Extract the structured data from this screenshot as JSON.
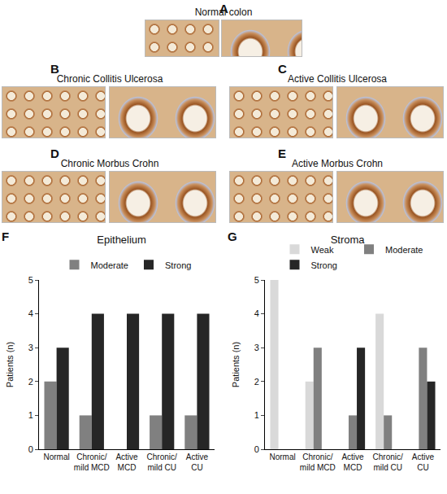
{
  "panels": [
    {
      "label": "A",
      "title": "Normal colon"
    },
    {
      "label": "B",
      "title": "Chronic Collitis Ulcerosa"
    },
    {
      "label": "C",
      "title": "Active Collitis Ulcerosa"
    },
    {
      "label": "D",
      "title": "Chronic Morbus Crohn"
    },
    {
      "label": "E",
      "title": "Active Morbus Crohn"
    }
  ],
  "chart_data": [
    {
      "type": "bar",
      "panel_label": "F",
      "title": "Epithelium",
      "categories": [
        "Normal",
        "Chronic/\nmild MCD",
        "Active\nMCD",
        "Chronic/\nmild CU",
        "Active\nCU"
      ],
      "series": [
        {
          "name": "Moderate",
          "color": "#808080",
          "values": [
            2,
            1,
            0,
            1,
            1
          ]
        },
        {
          "name": "Strong",
          "color": "#262626",
          "values": [
            3,
            4,
            4,
            4,
            4
          ]
        }
      ],
      "y_label": "Patients (n)",
      "ylim": [
        0,
        5
      ],
      "yticks": [
        0,
        1,
        2,
        3,
        4,
        5
      ],
      "grid": false,
      "legend": "top"
    },
    {
      "type": "bar",
      "panel_label": "G",
      "title": "Stroma",
      "categories": [
        "Normal",
        "Chronic/\nmild MCD",
        "Active\nMCD",
        "Chronic/\nmild CU",
        "Active\nCU"
      ],
      "series": [
        {
          "name": "Weak",
          "color": "#d9d9d9",
          "values": [
            5,
            2,
            0,
            4,
            0
          ]
        },
        {
          "name": "Moderate",
          "color": "#808080",
          "values": [
            0,
            3,
            1,
            1,
            3
          ]
        },
        {
          "name": "Strong",
          "color": "#262626",
          "values": [
            0,
            0,
            3,
            0,
            2
          ]
        }
      ],
      "y_label": "Patients (n)",
      "ylim": [
        0,
        5
      ],
      "yticks": [
        0,
        1,
        2,
        3,
        4,
        5
      ],
      "grid": false,
      "legend": "top"
    }
  ]
}
